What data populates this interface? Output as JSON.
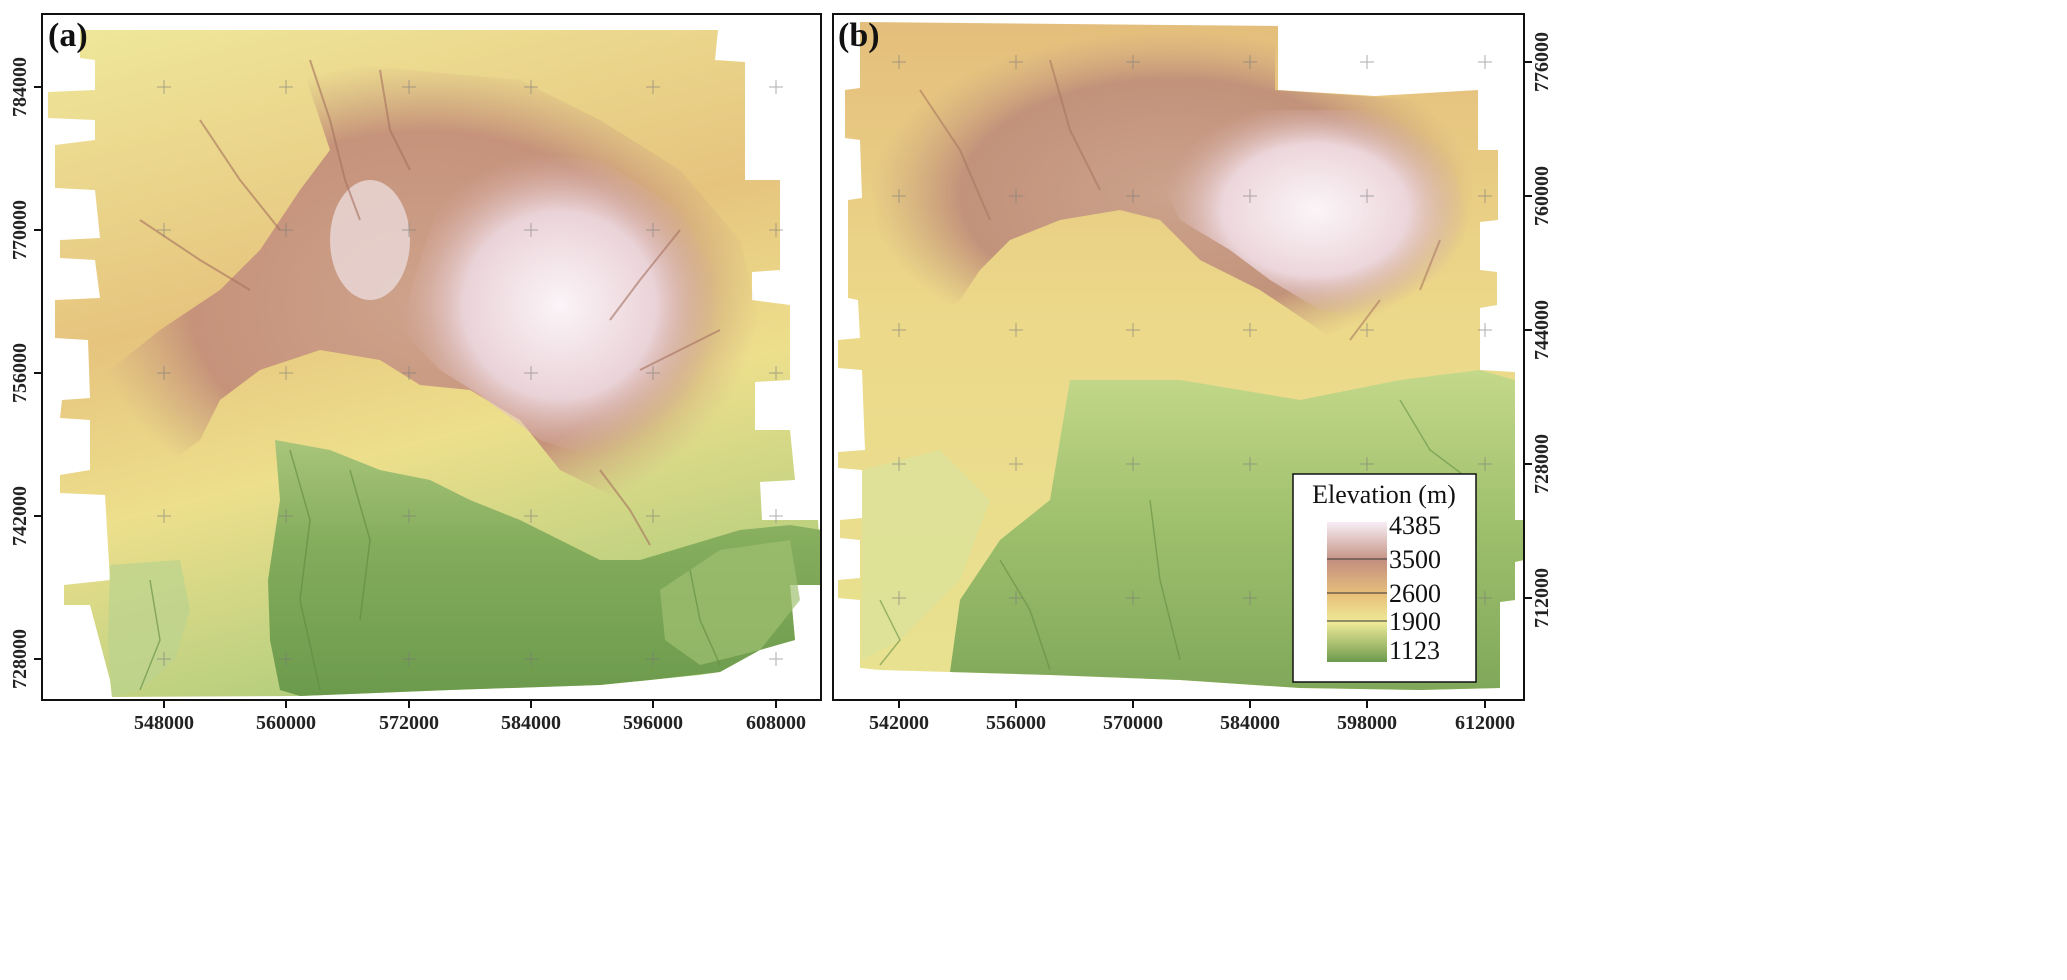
{
  "panels": [
    {
      "label": "(a)",
      "x_ticks": [
        "548000",
        "560000",
        "572000",
        "584000",
        "596000",
        "608000"
      ],
      "y_ticks": [
        "784000",
        "770000",
        "756000",
        "742000",
        "728000"
      ]
    },
    {
      "label": "(b)",
      "x_ticks": [
        "542000",
        "556000",
        "570000",
        "584000",
        "598000",
        "612000"
      ],
      "y_ticks": [
        "776000",
        "760000",
        "744000",
        "728000",
        "712000"
      ]
    }
  ],
  "legend": {
    "title": "Elevation (m)",
    "values": [
      "4385",
      "3500",
      "2600",
      "1900",
      "1123"
    ],
    "colors": [
      "#f7eef5",
      "#c49080",
      "#e8c07a",
      "#eeea98",
      "#6c9a4c"
    ]
  }
}
